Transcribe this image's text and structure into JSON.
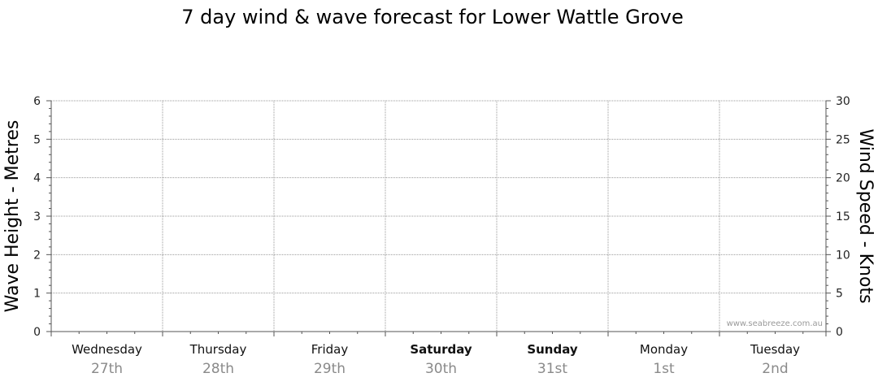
{
  "chart_data": {
    "type": "line",
    "title": "7 day wind & wave forecast for Lower Wattle Grove",
    "ylabel_left": "Wave Height - Metres",
    "ylabel_right": "Wind Speed - Knots",
    "ylim_left": [
      0,
      6
    ],
    "ylim_right": [
      0,
      30
    ],
    "yticks_left": [
      "0",
      "1",
      "2",
      "3",
      "4",
      "5",
      "6"
    ],
    "yticks_right": [
      "0",
      "5",
      "10",
      "15",
      "20",
      "25",
      "30"
    ],
    "grid": true,
    "days": [
      {
        "day": "Wednesday",
        "date": "27th",
        "weekend": false
      },
      {
        "day": "Thursday",
        "date": "28th",
        "weekend": false
      },
      {
        "day": "Friday",
        "date": "29th",
        "weekend": false
      },
      {
        "day": "Saturday",
        "date": "30th",
        "weekend": true
      },
      {
        "day": "Sunday",
        "date": "31st",
        "weekend": true
      },
      {
        "day": "Monday",
        "date": "1st",
        "weekend": false
      },
      {
        "day": "Tuesday",
        "date": "2nd",
        "weekend": false
      }
    ],
    "series": [],
    "watermark": "www.seabreeze.com.au"
  }
}
